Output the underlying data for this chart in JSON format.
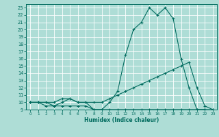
{
  "xlabel": "Humidex (Indice chaleur)",
  "bg_color": "#aeddd6",
  "line_color": "#006b5e",
  "grid_color": "#ffffff",
  "xlim": [
    -0.5,
    23.5
  ],
  "ylim": [
    9,
    23.5
  ],
  "xticks": [
    0,
    1,
    2,
    3,
    4,
    5,
    6,
    7,
    8,
    9,
    10,
    11,
    12,
    13,
    14,
    15,
    16,
    17,
    18,
    19,
    20,
    21,
    22,
    23
  ],
  "yticks": [
    9,
    10,
    11,
    12,
    13,
    14,
    15,
    16,
    17,
    18,
    19,
    20,
    21,
    22,
    23
  ],
  "line1_x": [
    0,
    1,
    2,
    3,
    4,
    5,
    6,
    7,
    8,
    9,
    10,
    11,
    12,
    13,
    14,
    15,
    16,
    17,
    18,
    19,
    20,
    21,
    22,
    23
  ],
  "line1_y": [
    10,
    10,
    10,
    9.5,
    10,
    10.5,
    10,
    10,
    9,
    9,
    10,
    11.5,
    16.5,
    20,
    21,
    23,
    22,
    23,
    21.5,
    16,
    12,
    9,
    9,
    8.5
  ],
  "line2_x": [
    0,
    1,
    2,
    3,
    4,
    5,
    6,
    7,
    8,
    9,
    10,
    11,
    12,
    13,
    14,
    15,
    16,
    17,
    18,
    19,
    20,
    21,
    22,
    23
  ],
  "line2_y": [
    10,
    10,
    10,
    10,
    10.5,
    10.5,
    10,
    10,
    10,
    10,
    10.5,
    11,
    11.5,
    12,
    12.5,
    13,
    13.5,
    14,
    14.5,
    15,
    15.5,
    12,
    9.5,
    9
  ],
  "line3_x": [
    0,
    1,
    2,
    3,
    4,
    5,
    6,
    7,
    8,
    9,
    10,
    11,
    12,
    13,
    14,
    15,
    16,
    17,
    18,
    19,
    20,
    21,
    22,
    23
  ],
  "line3_y": [
    10,
    10,
    9.5,
    9.5,
    9.5,
    9.5,
    9.5,
    9.5,
    9,
    9,
    9,
    9,
    9,
    9,
    9,
    9,
    9,
    9,
    9,
    9,
    9,
    9,
    9,
    9
  ]
}
